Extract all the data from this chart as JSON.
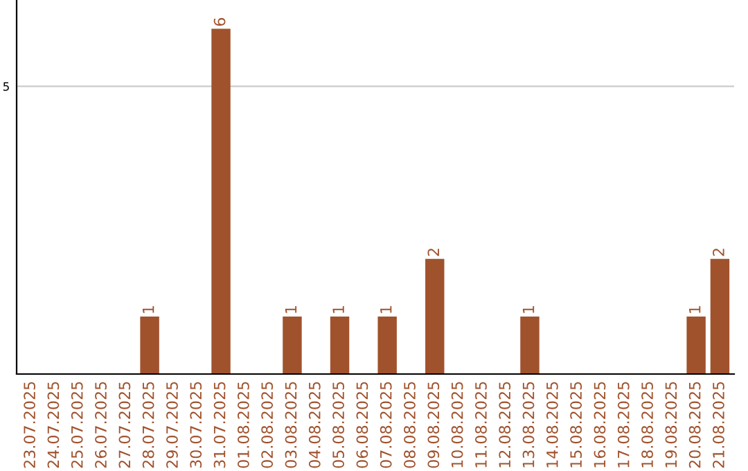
{
  "chart_data": {
    "type": "bar",
    "categories": [
      "23.07.2025",
      "24.07.2025",
      "25.07.2025",
      "26.07.2025",
      "27.07.2025",
      "28.07.2025",
      "29.07.2025",
      "30.07.2025",
      "31.07.2025",
      "01.08.2025",
      "02.08.2025",
      "03.08.2025",
      "04.08.2025",
      "05.08.2025",
      "06.08.2025",
      "07.08.2025",
      "08.08.2025",
      "09.08.2025",
      "10.08.2025",
      "11.08.2025",
      "12.08.2025",
      "13.08.2025",
      "14.08.2025",
      "15.08.2025",
      "16.08.2025",
      "17.08.2025",
      "18.08.2025",
      "19.08.2025",
      "20.08.2025",
      "21.08.2025"
    ],
    "values": [
      0,
      0,
      0,
      0,
      0,
      1,
      0,
      0,
      6,
      0,
      0,
      1,
      0,
      1,
      0,
      1,
      0,
      2,
      0,
      0,
      0,
      1,
      0,
      0,
      0,
      0,
      0,
      0,
      1,
      2
    ],
    "value_labels": [
      null,
      null,
      null,
      null,
      null,
      "1",
      null,
      null,
      "6",
      null,
      null,
      "1",
      null,
      "1",
      null,
      "1",
      null,
      "2",
      null,
      null,
      null,
      "1",
      null,
      null,
      null,
      null,
      null,
      null,
      "1",
      "2"
    ],
    "color": "#a0522d",
    "ylim": [
      0,
      6.5
    ],
    "yticks": [
      5
    ],
    "grid": "y"
  }
}
